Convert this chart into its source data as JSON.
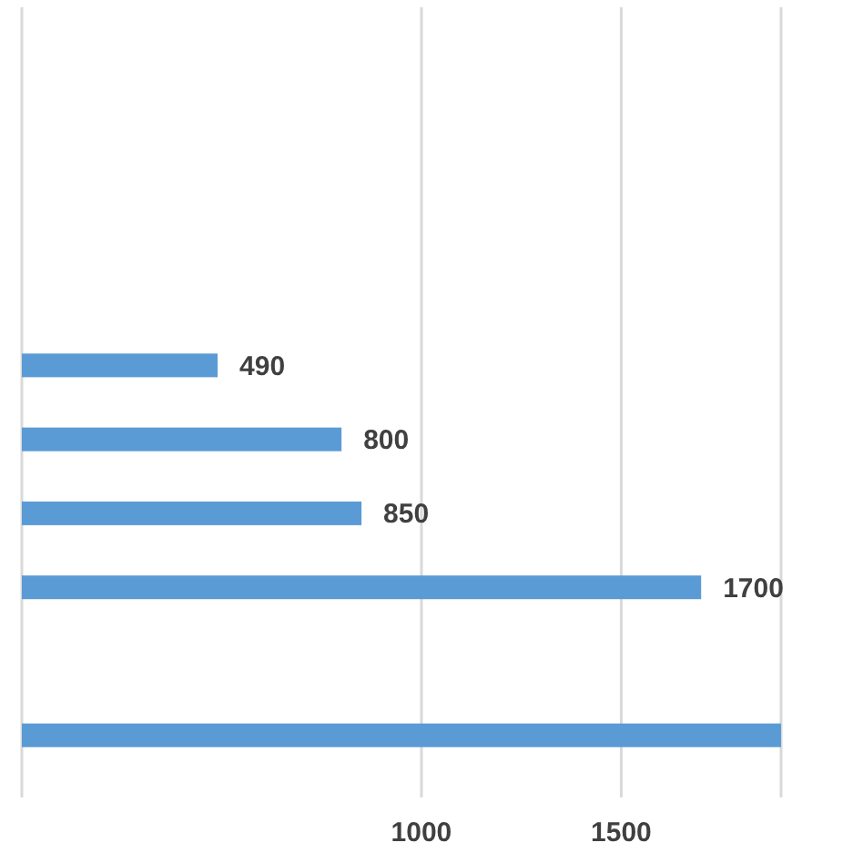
{
  "chart_data": {
    "type": "bar",
    "orientation": "horizontal",
    "categories": [
      null,
      null,
      null,
      null,
      null,
      null,
      null,
      null,
      null,
      null
    ],
    "values": [
      null,
      null,
      null,
      null,
      490,
      800,
      850,
      1700,
      null,
      1900
    ],
    "value_labels": [
      null,
      null,
      null,
      null,
      "490",
      "800",
      "850",
      "1700",
      null,
      null
    ],
    "color": "#5b9bd5",
    "xlim": [
      0,
      1900
    ],
    "xticks": [
      1000,
      1500
    ],
    "grid": "x"
  }
}
